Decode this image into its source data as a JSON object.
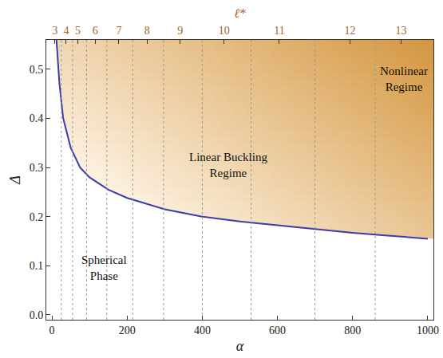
{
  "chart_data": {
    "type": "line",
    "xlabel": "α",
    "ylabel": "Δ",
    "x2label": "ℓ*",
    "x": [
      12,
      15,
      20,
      30,
      50,
      75,
      100,
      150,
      200,
      300,
      400,
      500,
      600,
      700,
      800,
      900,
      1000
    ],
    "values": [
      0.56,
      0.52,
      0.47,
      0.4,
      0.34,
      0.3,
      0.28,
      0.255,
      0.238,
      0.215,
      0.2,
      0.19,
      0.182,
      0.174,
      0.167,
      0.161,
      0.155
    ],
    "color": "#3c3ca8",
    "xlim": [
      -15,
      1015
    ],
    "xticks": [
      0,
      200,
      400,
      600,
      800,
      1000
    ],
    "ylim": [
      -0.01,
      0.56
    ],
    "yticks": [
      {
        "value": 0,
        "label": "0.0"
      },
      {
        "value": 0.1,
        "label": "0.1"
      },
      {
        "value": 0.2,
        "label": "0.2"
      },
      {
        "value": 0.3,
        "label": "0.3"
      },
      {
        "value": 0.4,
        "label": "0.4"
      },
      {
        "value": 0.5,
        "label": "0.5"
      }
    ],
    "x2ticks": [
      {
        "value": 8,
        "label": "3"
      },
      {
        "value": 38,
        "label": "4"
      },
      {
        "value": 69,
        "label": "5"
      },
      {
        "value": 115,
        "label": "6"
      },
      {
        "value": 178,
        "label": "7"
      },
      {
        "value": 253,
        "label": "8"
      },
      {
        "value": 341,
        "label": "9"
      },
      {
        "value": 458,
        "label": "10"
      },
      {
        "value": 605,
        "label": "11"
      },
      {
        "value": 793,
        "label": "12"
      },
      {
        "value": 929,
        "label": "13"
      }
    ],
    "boundaries": [
      25,
      55,
      92,
      146,
      215,
      297,
      400,
      530,
      700,
      860
    ],
    "annotations": [
      "Spherical Phase",
      "Linear Buckling Regime",
      "Nonlinear Regime"
    ],
    "grid": false
  }
}
